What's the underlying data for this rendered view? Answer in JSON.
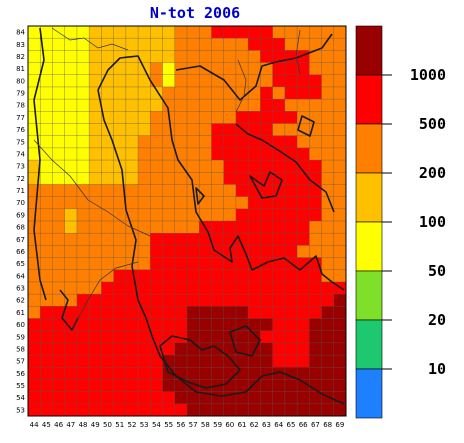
{
  "title": "N-tot 2006",
  "map": {
    "x_labels": [
      "44",
      "45",
      "46",
      "47",
      "48",
      "49",
      "50",
      "51",
      "52",
      "53",
      "54",
      "55",
      "56",
      "57",
      "58",
      "59",
      "60",
      "61",
      "62",
      "63",
      "64",
      "65",
      "66",
      "67",
      "68",
      "69"
    ],
    "y_labels": [
      "84",
      "83",
      "82",
      "81",
      "80",
      "79",
      "78",
      "77",
      "76",
      "75",
      "74",
      "73",
      "72",
      "71",
      "70",
      "69",
      "68",
      "67",
      "66",
      "65",
      "64",
      "63",
      "62",
      "61",
      "60",
      "59",
      "58",
      "57",
      "56",
      "55",
      "54",
      "53"
    ],
    "class_colors": [
      "#1e7fff",
      "#1ec86e",
      "#7fe02a",
      "#ffff00",
      "#ffc000",
      "#ff7f00",
      "#ff0000",
      "#990000"
    ],
    "grid": [
      "33333444444455566666555555",
      "33333444444455555566655555",
      "33333444444455555556666555",
      "33333444445355555555666555",
      "33333444445355555555666655",
      "33333444444555555556566655",
      "33333444444555555556655555",
      "33333444445555555666665555",
      "33333444445555566666555555",
      "33333444455555566666665555",
      "33333444455555566666666555",
      "43333444455555556666666655",
      "43333444455555556666666655",
      "55555555555555555666666655",
      "55555555555555555566666655",
      "55545555555555555666666655",
      "55545555555555666666666555",
      "55555555556666666666666555",
      "55555555556666666666665555",
      "55555555556666666666666655",
      "55555556666666666666666655",
      "55555566666666666666666666",
      "55556666666666666666666667",
      "56666666666667777766666677",
      "66666666666667777777666777",
      "66666666666667777776666777",
      "66666666666677777777666777",
      "66666666666777777777666777",
      "66666666666777777777777777",
      "66666666666777777777777777",
      "66666666666677777777777777",
      "66666666666667777777777777"
    ]
  },
  "legend": {
    "labels": [
      "1000",
      "500",
      "200",
      "100",
      "50",
      "20",
      "10"
    ]
  }
}
